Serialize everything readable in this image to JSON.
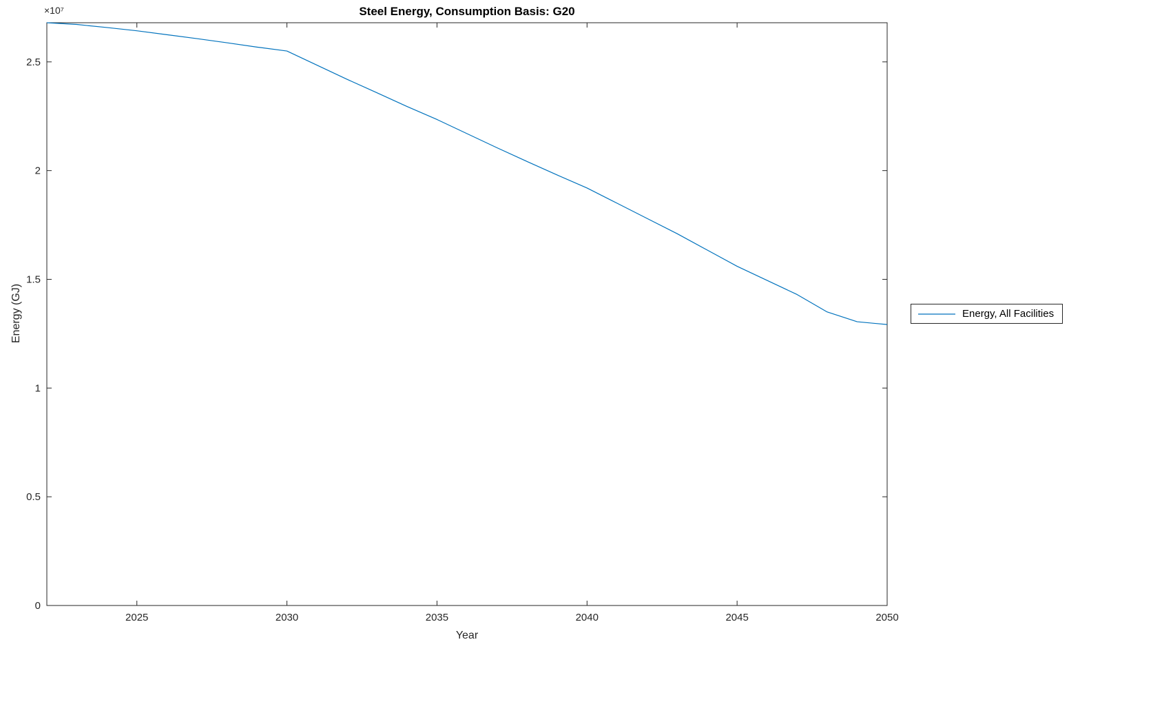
{
  "page": {
    "background": "#ffffff"
  },
  "chart_data": {
    "type": "line",
    "title": "Steel Energy, Consumption Basis: G20",
    "xlabel": "Year",
    "ylabel": "Energy (GJ)",
    "y_axis_multiplier": "×10⁷",
    "xlim": [
      2022,
      2050
    ],
    "ylim": [
      0,
      26800000
    ],
    "xticks": [
      2025,
      2030,
      2035,
      2040,
      2045,
      2050
    ],
    "yticks": [
      0,
      5000000,
      10000000,
      15000000,
      20000000,
      25000000
    ],
    "yticklabels": [
      "0",
      "0.5",
      "1",
      "1.5",
      "2",
      "2.5"
    ],
    "grid": false,
    "legend_position": "right-outside",
    "axis_color": "#262626",
    "series": [
      {
        "name": "Energy, All Facilities",
        "color": "#0072BD",
        "x": [
          2022,
          2023,
          2024,
          2025,
          2026,
          2027,
          2028,
          2029,
          2030,
          2031,
          2032,
          2033,
          2034,
          2035,
          2036,
          2037,
          2038,
          2039,
          2040,
          2041,
          2042,
          2043,
          2044,
          2045,
          2046,
          2047,
          2048,
          2049,
          2050
        ],
        "values": [
          26800000,
          26720000,
          26580000,
          26430000,
          26250000,
          26070000,
          25880000,
          25680000,
          25500000,
          24850000,
          24200000,
          23580000,
          22950000,
          22350000,
          21700000,
          21050000,
          20420000,
          19800000,
          19200000,
          18500000,
          17800000,
          17100000,
          16350000,
          15600000,
          14950000,
          14300000,
          13500000,
          13050000,
          12920000
        ]
      }
    ]
  }
}
